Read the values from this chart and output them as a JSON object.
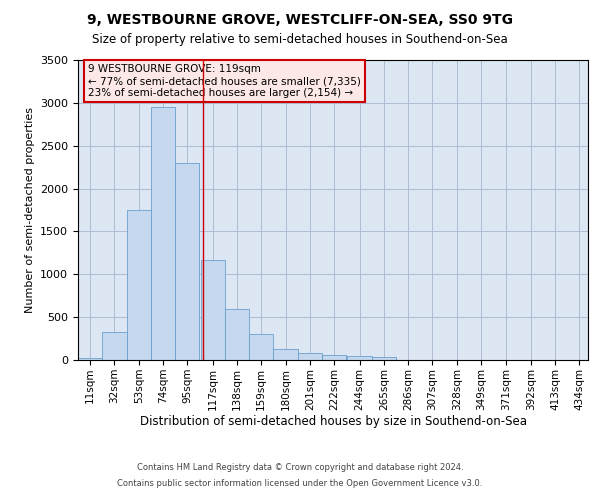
{
  "title1": "9, WESTBOURNE GROVE, WESTCLIFF-ON-SEA, SS0 9TG",
  "title2": "Size of property relative to semi-detached houses in Southend-on-Sea",
  "xlabel": "Distribution of semi-detached houses by size in Southend-on-Sea",
  "ylabel": "Number of semi-detached properties",
  "footnote1": "Contains HM Land Registry data © Crown copyright and database right 2024.",
  "footnote2": "Contains public sector information licensed under the Open Government Licence v3.0.",
  "annotation_title": "9 WESTBOURNE GROVE: 119sqm",
  "annotation_line1": "← 77% of semi-detached houses are smaller (7,335)",
  "annotation_line2": "23% of semi-detached houses are larger (2,154) →",
  "bar_labels": [
    "11sqm",
    "32sqm",
    "53sqm",
    "74sqm",
    "95sqm",
    "117sqm",
    "138sqm",
    "159sqm",
    "180sqm",
    "201sqm",
    "222sqm",
    "244sqm",
    "265sqm",
    "286sqm",
    "307sqm",
    "328sqm",
    "349sqm",
    "371sqm",
    "392sqm",
    "413sqm",
    "434sqm"
  ],
  "bar_values": [
    20,
    330,
    1750,
    2950,
    2300,
    1170,
    600,
    300,
    130,
    80,
    60,
    50,
    30,
    0,
    0,
    0,
    0,
    0,
    0,
    0,
    0
  ],
  "bin_starts": [
    11,
    32,
    53,
    74,
    95,
    117,
    138,
    159,
    180,
    201,
    222,
    244,
    265,
    286,
    307,
    328,
    349,
    371,
    392,
    413,
    434
  ],
  "bin_width": 21,
  "bar_color": "#c5d8ef",
  "bar_edge_color": "#6a9fcb",
  "vline_color": "#cc0000",
  "vline_x": 119,
  "ylim": [
    0,
    3500
  ],
  "yticks": [
    0,
    500,
    1000,
    1500,
    2000,
    2500,
    3000,
    3500
  ],
  "grid_color": "#b0bcd4",
  "bg_color": "#dde6f3",
  "annotation_box_facecolor": "#fde8e8",
  "annotation_box_edgecolor": "#cc0000"
}
